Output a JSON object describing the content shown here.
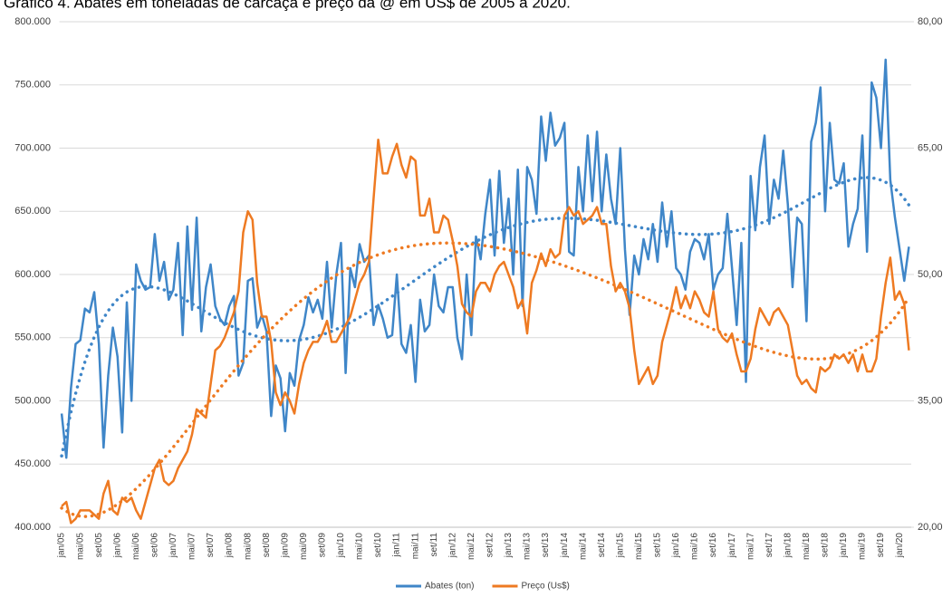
{
  "chart_data": {
    "type": "line",
    "title": "Gráfico 4. Abates em toneladas de carcaça e preço da @ em US$ de 2005 a 2020.",
    "categories": [
      "jan/05",
      null,
      null,
      null,
      "mai/05",
      null,
      null,
      null,
      "set/05",
      null,
      null,
      null,
      "jan/06",
      null,
      null,
      null,
      "mai/06",
      null,
      null,
      null,
      "set/06",
      null,
      null,
      null,
      "jan/07",
      null,
      null,
      null,
      "mai/07",
      null,
      null,
      null,
      "set/07",
      null,
      null,
      null,
      "jan/08",
      null,
      null,
      null,
      "mai/08",
      null,
      null,
      null,
      "set/08",
      null,
      null,
      null,
      "jan/09",
      null,
      null,
      null,
      "mai/09",
      null,
      null,
      null,
      "set/09",
      null,
      null,
      null,
      "jan/10",
      null,
      null,
      null,
      "mai/10",
      null,
      null,
      null,
      "set/10",
      null,
      null,
      null,
      "jan/11",
      null,
      null,
      null,
      "mai/11",
      null,
      null,
      null,
      "set/11",
      null,
      null,
      null,
      "jan/12",
      null,
      null,
      null,
      "mai/12",
      null,
      null,
      null,
      "set/12",
      null,
      null,
      null,
      "jan/13",
      null,
      null,
      null,
      "mai/13",
      null,
      null,
      null,
      "set/13",
      null,
      null,
      null,
      "jan/14",
      null,
      null,
      null,
      "mai/14",
      null,
      null,
      null,
      "set/14",
      null,
      null,
      null,
      "jan/15",
      null,
      null,
      null,
      "mai/15",
      null,
      null,
      null,
      "set/15",
      null,
      null,
      null,
      "jan/16",
      null,
      null,
      null,
      "mai/16",
      null,
      null,
      null,
      "set/16",
      null,
      null,
      null,
      "jan/17",
      null,
      null,
      null,
      "mai/17",
      null,
      null,
      null,
      "set/17",
      null,
      null,
      null,
      "jan/18",
      null,
      null,
      null,
      "mai/18",
      null,
      null,
      null,
      "set/18",
      null,
      null,
      null,
      "jan/19",
      null,
      null,
      null,
      "mai/19",
      null,
      null,
      null,
      "set/19",
      null,
      null,
      null,
      "jan/20",
      null,
      null
    ],
    "series": [
      {
        "name": "Abates (ton)",
        "color": "#3f86c8",
        "values": [
          490000,
          455000,
          510000,
          545000,
          548000,
          573000,
          570000,
          586000,
          545000,
          463000,
          520000,
          558000,
          535000,
          475000,
          578000,
          500000,
          608000,
          595000,
          588000,
          590000,
          632000,
          595000,
          610000,
          580000,
          588000,
          625000,
          552000,
          638000,
          572000,
          645000,
          555000,
          590000,
          608000,
          575000,
          565000,
          560000,
          575000,
          583000,
          520000,
          530000,
          595000,
          597000,
          558000,
          568000,
          555000,
          488000,
          528000,
          518000,
          476000,
          522000,
          512000,
          548000,
          560000,
          582000,
          570000,
          580000,
          565000,
          610000,
          558000,
          600000,
          625000,
          522000,
          605000,
          590000,
          624000,
          610000,
          615000,
          560000,
          576000,
          565000,
          550000,
          552000,
          600000,
          545000,
          538000,
          560000,
          515000,
          580000,
          555000,
          560000,
          600000,
          575000,
          570000,
          590000,
          590000,
          550000,
          533000,
          600000,
          552000,
          630000,
          612000,
          648000,
          675000,
          615000,
          682000,
          625000,
          660000,
          600000,
          683000,
          575000,
          685000,
          675000,
          648000,
          725000,
          690000,
          728000,
          702000,
          708000,
          720000,
          618000,
          615000,
          685000,
          650000,
          710000,
          658000,
          713000,
          650000,
          695000,
          660000,
          640000,
          700000,
          620000,
          568000,
          615000,
          600000,
          628000,
          612000,
          640000,
          610000,
          657000,
          622000,
          650000,
          605000,
          600000,
          588000,
          618000,
          628000,
          625000,
          612000,
          632000,
          588000,
          600000,
          605000,
          648000,
          605000,
          560000,
          625000,
          515000,
          678000,
          635000,
          685000,
          710000,
          640000,
          675000,
          660000,
          698000,
          655000,
          590000,
          645000,
          640000,
          563000,
          705000,
          720000,
          748000,
          650000,
          720000,
          675000,
          672000,
          688000,
          622000,
          640000,
          652000,
          710000,
          618000,
          752000,
          740000,
          700000,
          770000,
          675000,
          645000,
          620000,
          595000,
          622000
        ]
      },
      {
        "name": "Preço (Us$)",
        "color": "#ee7a22",
        "axis": "y2",
        "values": [
          22.5,
          23,
          20.5,
          21,
          22,
          22,
          22,
          21.5,
          21,
          24,
          25.5,
          22,
          21.5,
          23.5,
          23,
          23.5,
          22,
          21,
          23,
          25,
          27,
          28,
          25.5,
          25,
          25.5,
          27,
          28,
          29,
          31,
          34,
          33.5,
          33,
          37,
          41,
          41.5,
          42.5,
          44,
          45.5,
          48,
          55,
          57.5,
          56.5,
          49,
          45,
          45,
          42,
          36,
          34.5,
          36,
          35,
          33.5,
          37,
          39.5,
          41,
          42,
          42,
          43,
          44.5,
          42,
          42,
          43,
          44,
          45,
          47,
          49,
          50,
          51.5,
          59,
          66,
          62,
          62,
          64,
          65.5,
          63,
          61.5,
          64,
          63.5,
          57,
          57,
          59,
          55,
          55,
          57,
          56.5,
          54,
          51,
          46.5,
          45.5,
          45,
          48,
          49,
          49,
          48,
          50,
          51,
          51.5,
          50,
          48.5,
          46,
          47,
          43,
          49,
          50.5,
          52.5,
          51,
          53,
          52,
          52.5,
          57,
          58,
          57,
          57.5,
          56,
          56.5,
          57,
          58,
          56,
          56,
          51,
          48,
          49,
          48,
          46,
          41,
          37,
          38,
          39,
          37,
          38,
          42,
          44,
          46,
          48.5,
          46,
          47.5,
          46,
          48,
          47,
          45.5,
          45,
          48,
          43.5,
          42.5,
          42,
          43,
          40.5,
          38.5,
          38.5,
          40,
          43.5,
          46,
          45,
          44,
          45.5,
          46,
          45,
          44,
          41,
          38,
          37,
          37.5,
          36.5,
          36,
          39,
          38.5,
          39,
          40.5,
          40,
          40.5,
          39.5,
          40.5,
          38.5,
          40.5,
          38.5,
          38.5,
          40,
          45,
          49,
          52,
          47,
          48,
          46.5,
          41
        ]
      }
    ],
    "ylim": [
      400000,
      800000
    ],
    "yticks": [
      {
        "value": 400000,
        "label": "400.000"
      },
      {
        "value": 450000,
        "label": "450.000"
      },
      {
        "value": 500000,
        "label": "500.000"
      },
      {
        "value": 550000,
        "label": "550.000"
      },
      {
        "value": 600000,
        "label": "600.000"
      },
      {
        "value": 650000,
        "label": "650.000"
      },
      {
        "value": 700000,
        "label": "700.000"
      },
      {
        "value": 750000,
        "label": "750.000"
      },
      {
        "value": 800000,
        "label": "800.000"
      }
    ],
    "y2lim": [
      20,
      80
    ],
    "y2ticks": [
      {
        "value": 20,
        "label": "20,00"
      },
      {
        "value": 35,
        "label": "35,00"
      },
      {
        "value": 50,
        "label": "50,00"
      },
      {
        "value": 65,
        "label": "65,00"
      },
      {
        "value": 80,
        "label": "80,00"
      }
    ],
    "grid": true,
    "trendline": true,
    "legend": "bottom"
  }
}
